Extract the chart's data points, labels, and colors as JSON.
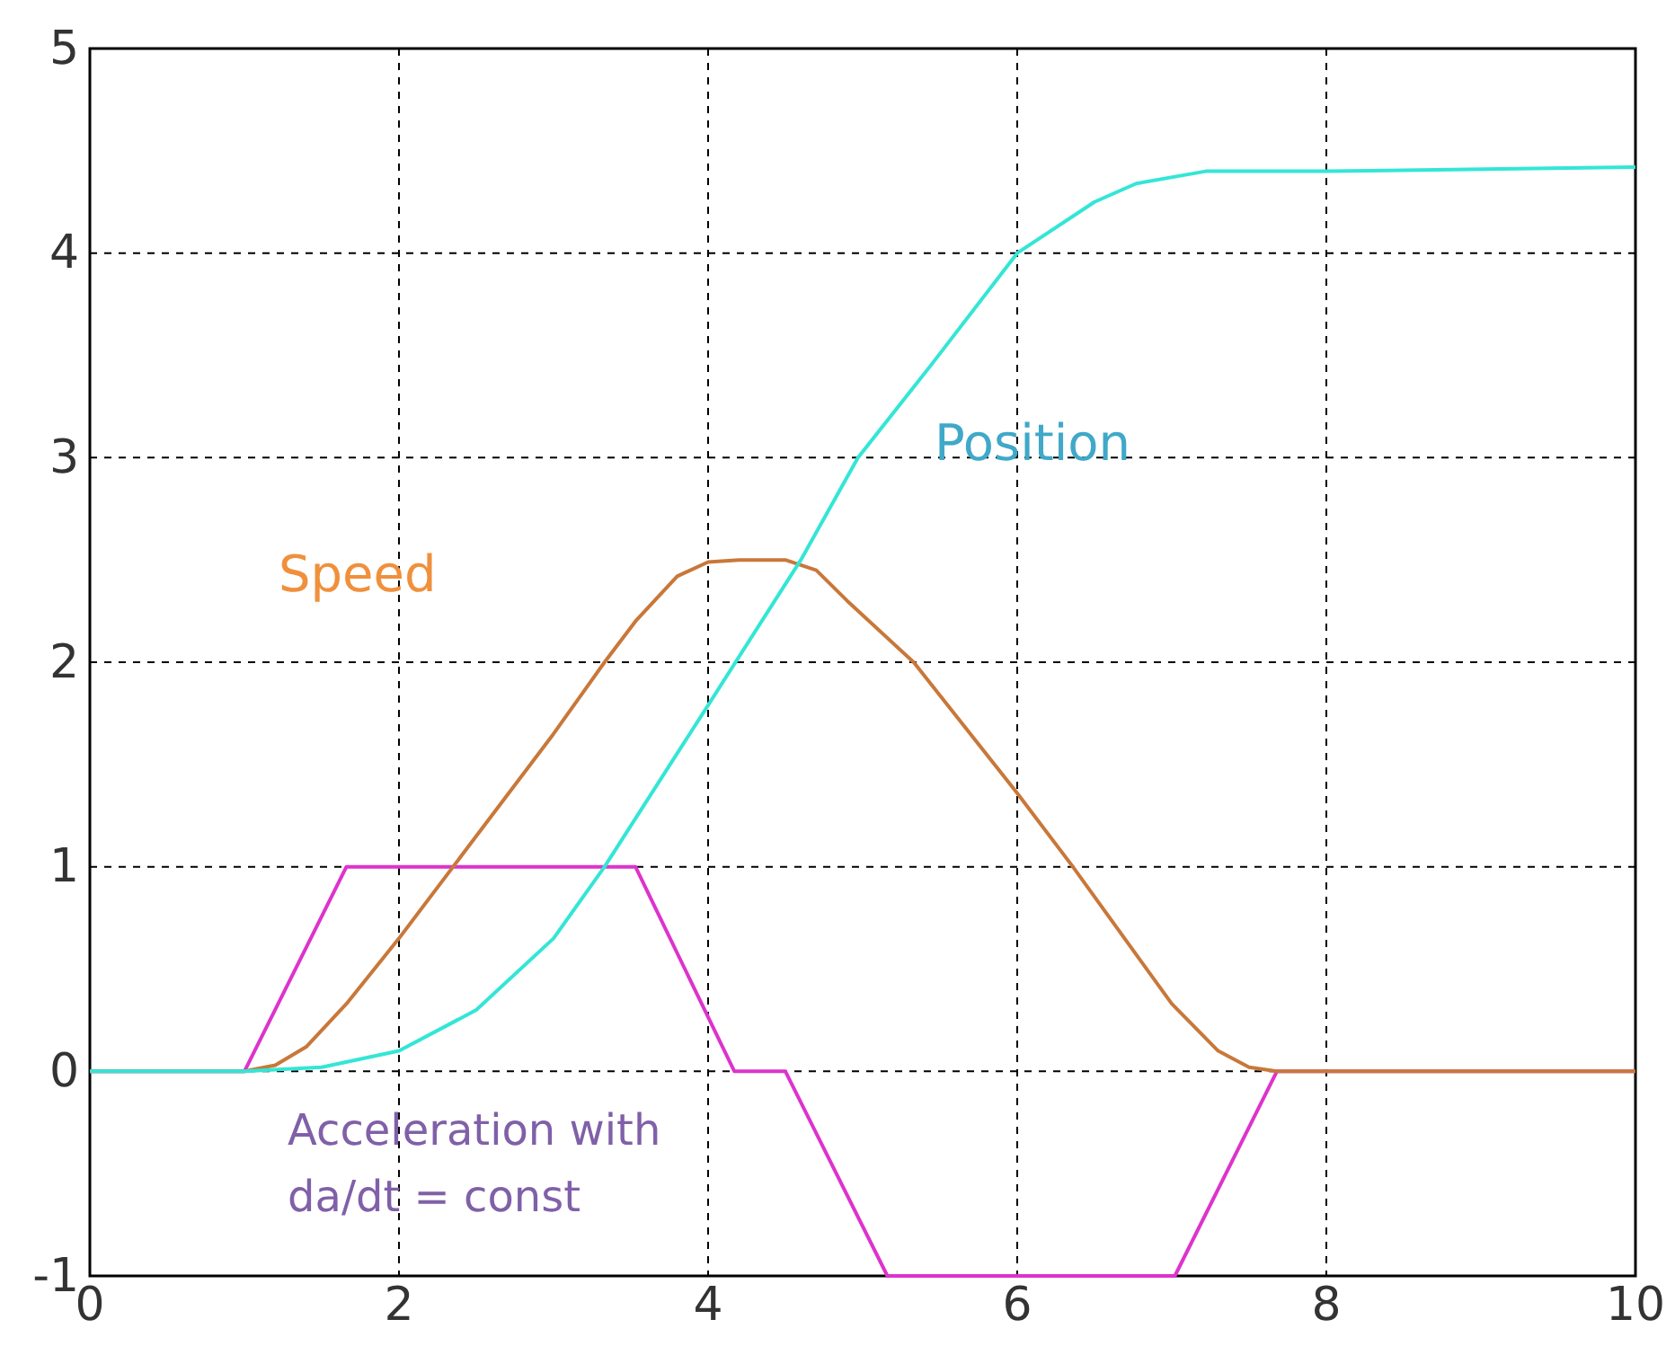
{
  "chart_data": {
    "type": "line",
    "xlim": [
      0,
      10
    ],
    "ylim": [
      -1,
      5
    ],
    "xticks": [
      0,
      2,
      4,
      6,
      8,
      10
    ],
    "yticks": [
      -1,
      0,
      1,
      2,
      3,
      4,
      5
    ],
    "grid": true,
    "marker": "none",
    "line_style": "solid",
    "series": [
      {
        "color": "#dd33cc",
        "x": [
          0,
          1.0,
          1.66,
          3.53,
          4.17,
          4.5,
          5.16,
          7.02,
          7.68,
          10
        ],
        "values": [
          0,
          0,
          1,
          1,
          0,
          0,
          -1,
          -1,
          0,
          0
        ]
      },
      {
        "color": "#c8783a",
        "x": [
          0,
          1.0,
          1.2,
          1.4,
          1.66,
          2,
          2.5,
          3,
          3.33,
          3.53,
          3.8,
          4.0,
          4.2,
          4.5,
          4.7,
          4.9,
          5.33,
          6,
          6.36,
          7,
          7.3,
          7.5,
          7.68,
          10
        ],
        "values": [
          0,
          0,
          0.03,
          0.12,
          0.33,
          0.65,
          1.15,
          1.65,
          2.0,
          2.2,
          2.42,
          2.49,
          2.5,
          2.5,
          2.45,
          2.3,
          2.0,
          1.36,
          1.0,
          0.33,
          0.1,
          0.02,
          0,
          0
        ]
      },
      {
        "color": "#33e6d6",
        "x": [
          0,
          1,
          1.5,
          2,
          2.5,
          3,
          3.33,
          4,
          4.6,
          4.97,
          5.44,
          6,
          6.5,
          6.77,
          7.22,
          8,
          10
        ],
        "values": [
          0,
          0,
          0.02,
          0.1,
          0.3,
          0.65,
          1,
          1.79,
          2.5,
          3,
          3.45,
          4,
          4.25,
          4.34,
          4.4,
          4.4,
          4.42
        ]
      }
    ],
    "annotations": [
      "Speed",
      "Position",
      "Acceleration with\nda/dt = const"
    ]
  }
}
